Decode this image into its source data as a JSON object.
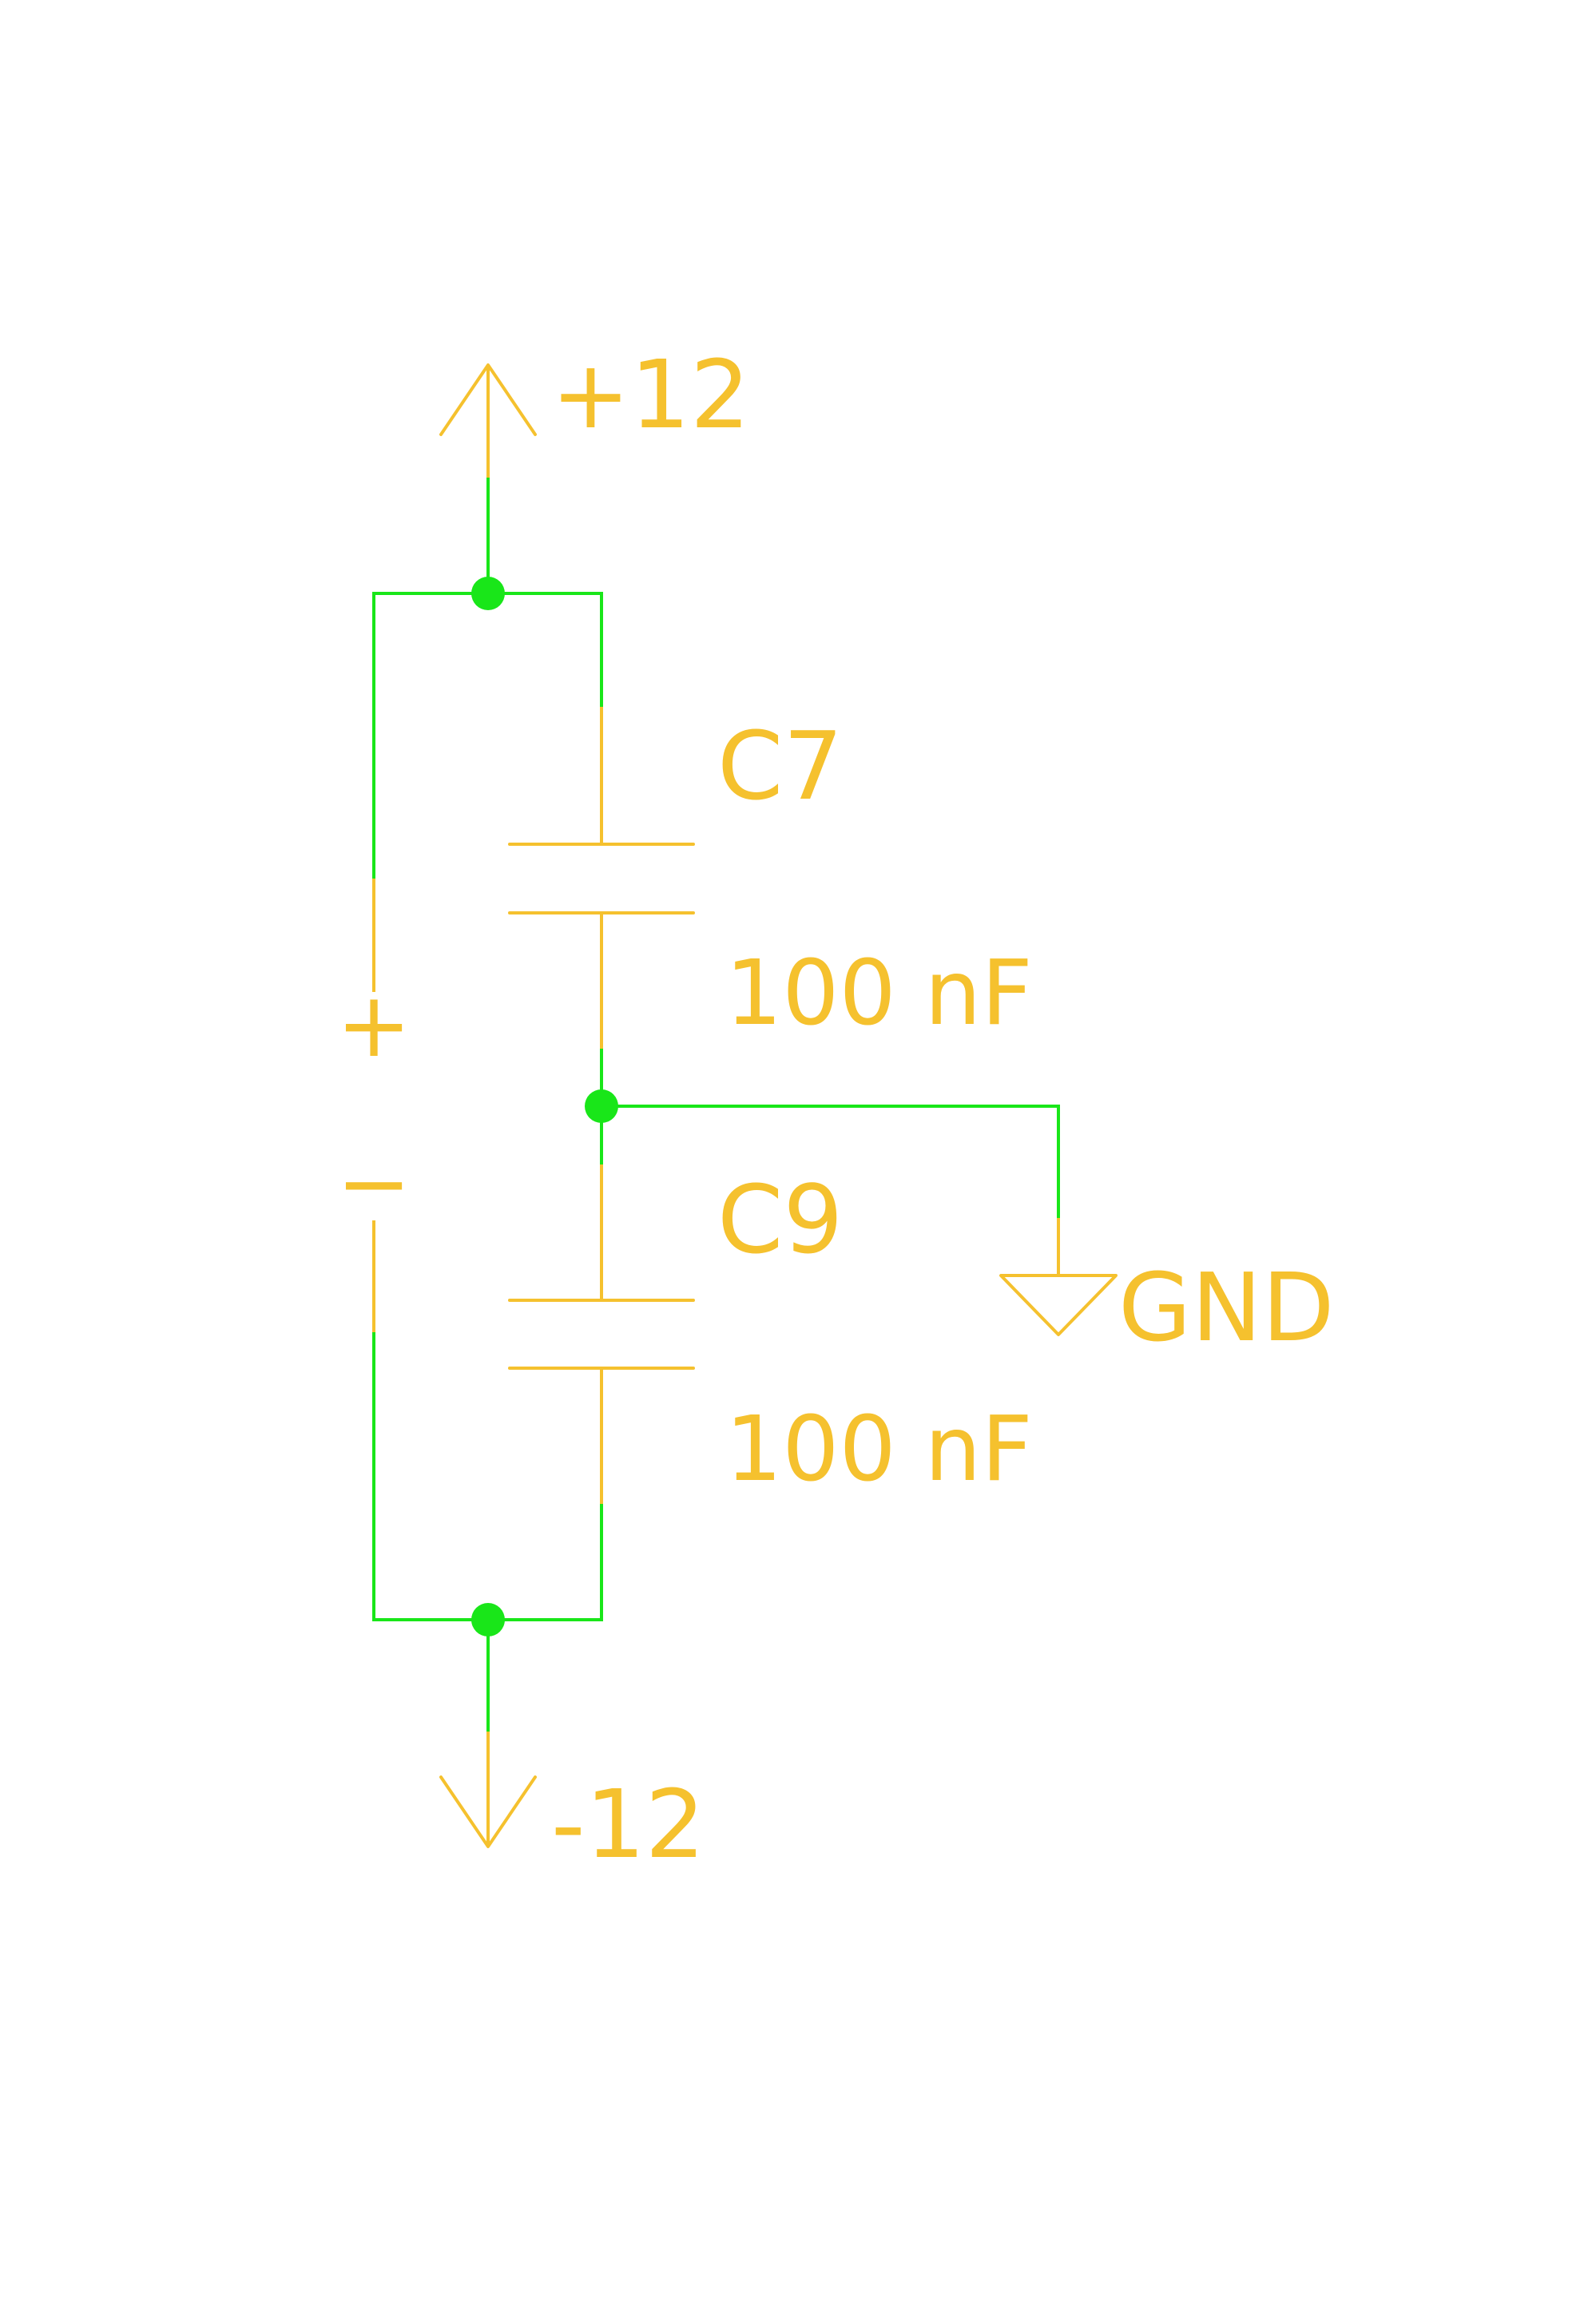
{
  "colors": {
    "background": "#ffffff",
    "wire": "#19e619",
    "component": "#f5c12e",
    "junction": "#19e619"
  },
  "power": {
    "positive_label": "+12",
    "negative_label": "-12",
    "ground_label": "GND"
  },
  "components": [
    {
      "ref": "C7",
      "value": "100 nF"
    },
    {
      "ref": "C9",
      "value": "100 nF"
    }
  ],
  "connector": {
    "plus_mark": "+",
    "minus_mark": "−"
  }
}
